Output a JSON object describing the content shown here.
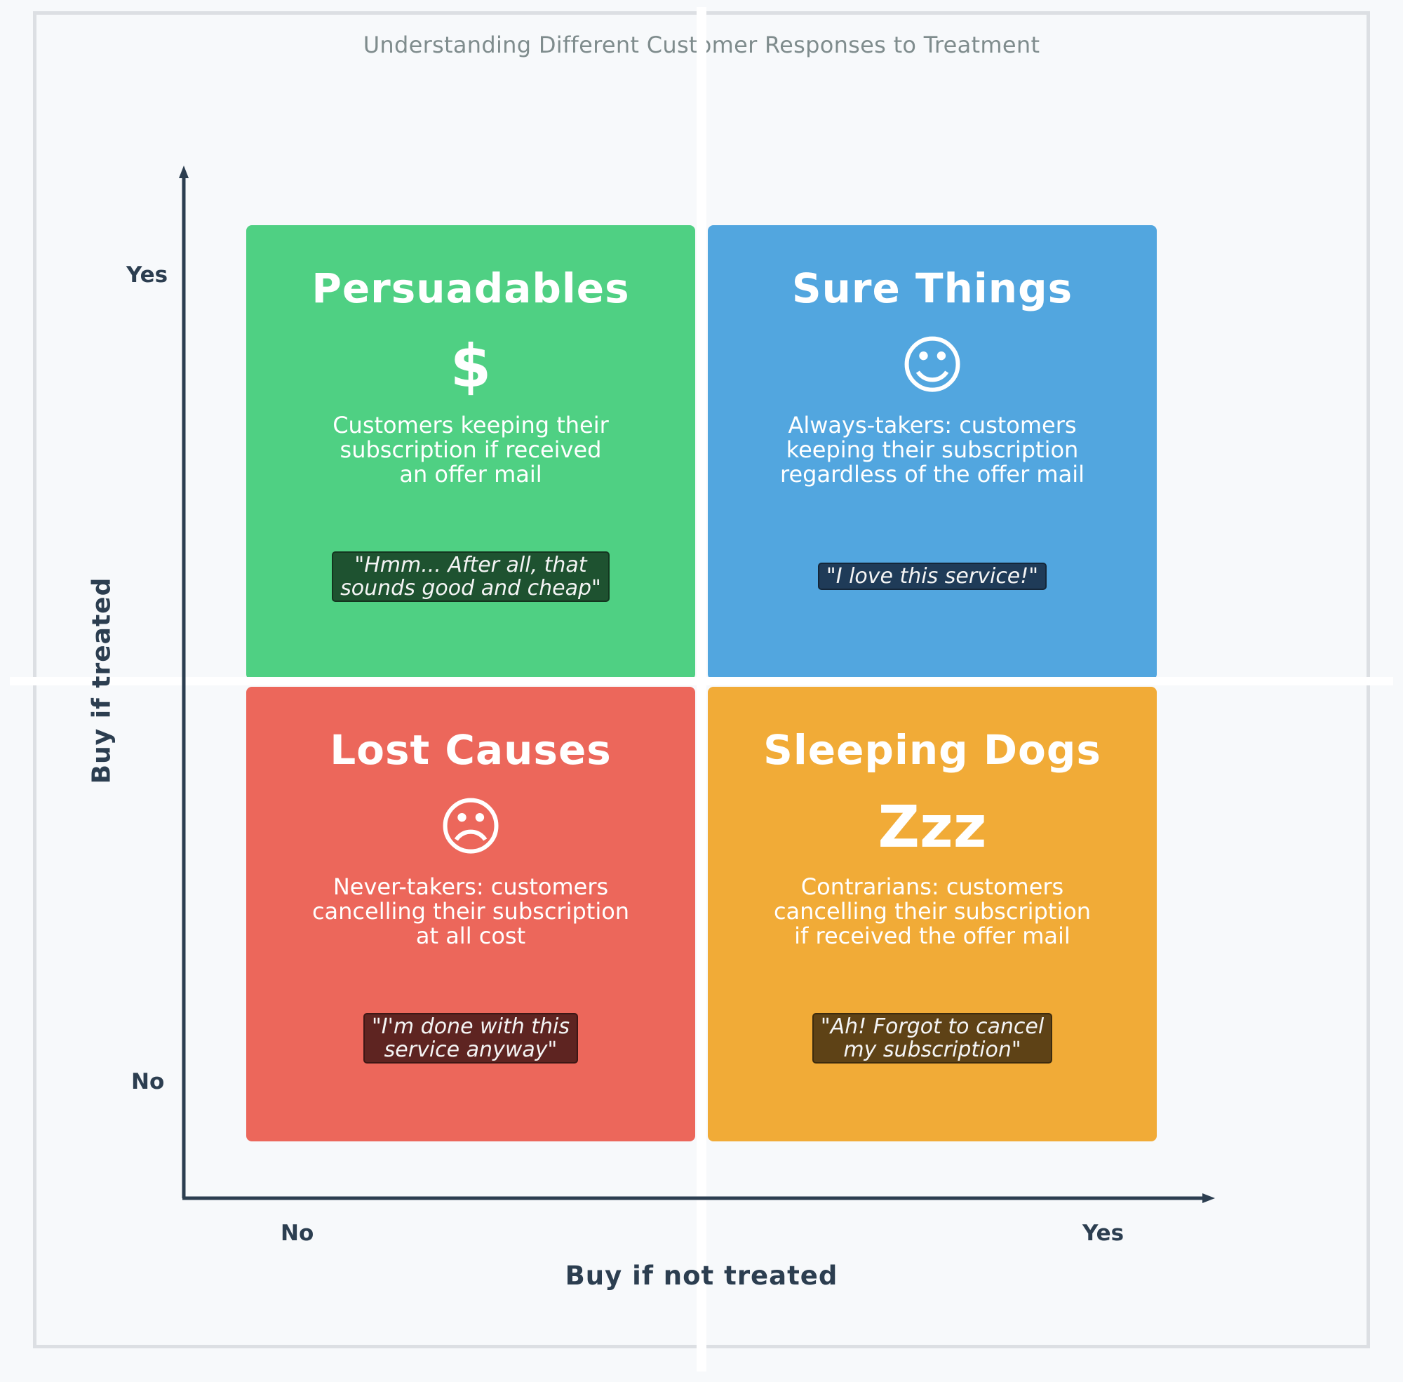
{
  "title": "Understanding Different Customer Responses to Treatment",
  "axes": {
    "y_label": "Buy if treated",
    "x_label": "Buy if not treated",
    "y_ticks": [
      "Yes",
      "No"
    ],
    "x_ticks": [
      "No",
      "Yes"
    ]
  },
  "quadrants": [
    {
      "name": "Persuadables",
      "icon": "dollar-sign",
      "icon_glyph": "$",
      "description": "Customers keeping their\nsubscription if received\nan offer mail",
      "quote": "\"Hmm... After all, that\nsounds good and cheap\"",
      "color": "#4fd083",
      "quote_color": "#1e5230"
    },
    {
      "name": "Sure Things",
      "icon": "smiley-face",
      "icon_glyph": "☺",
      "description": "Always-takers: customers\nkeeping their subscription\nregardless of the offer mail",
      "quote": "\"I love this service!\"",
      "color": "#52a6df",
      "quote_color": "#1f3b58"
    },
    {
      "name": "Lost Causes",
      "icon": "frowning-face",
      "icon_glyph": "☹",
      "description": "Never-takers: customers\ncancelling their subscription\nat all cost",
      "quote": "\"I'm done with this\nservice anyway\"",
      "color": "#ec675b",
      "quote_color": "#5e2421"
    },
    {
      "name": "Sleeping Dogs",
      "icon": "sleep-zzz",
      "icon_glyph": "Zzz",
      "description": "Contrarians: customers\ncancelling their subscription\nif received the offer mail",
      "quote": "\"Ah! Forgot to cancel\nmy subscription\"",
      "color": "#f1ab37",
      "quote_color": "#5e4216"
    }
  ]
}
